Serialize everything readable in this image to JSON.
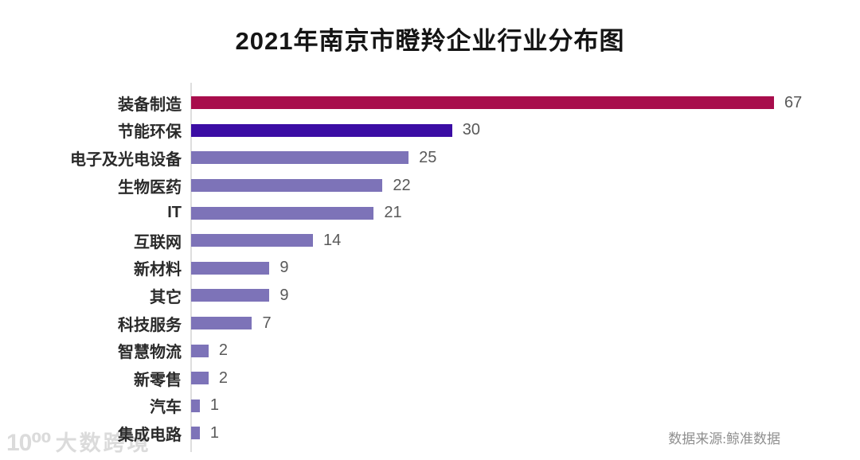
{
  "title": "2021年南京市瞪羚企业行业分布图",
  "chart_data": {
    "type": "bar",
    "orientation": "horizontal",
    "title": "2021年南京市瞪羚企业行业分布图",
    "categories": [
      "装备制造",
      "节能环保",
      "电子及光电设备",
      "生物医药",
      "IT",
      "互联网",
      "新材料",
      "其它",
      "科技服务",
      "智慧物流",
      "新零售",
      "汽车",
      "集成电路"
    ],
    "values": [
      67,
      30,
      25,
      22,
      21,
      14,
      9,
      9,
      7,
      2,
      2,
      1,
      1
    ],
    "bar_colors": [
      "#A80D4C",
      "#3B0DA4",
      "#7D73B8",
      "#7D73B8",
      "#7D73B8",
      "#7D73B8",
      "#7D73B8",
      "#7D73B8",
      "#7D73B8",
      "#7D73B8",
      "#7D73B8",
      "#7D73B8",
      "#7D73B8"
    ],
    "xlim": [
      0,
      67
    ],
    "grid": false,
    "legend": false,
    "value_labels_shown": true,
    "source_note": "数据来源:鲸准数据"
  },
  "colors": {
    "highlight_top_bar": "#A80D4C",
    "highlight_second_bar": "#3B0DA4",
    "default_bar": "#7D73B8",
    "axis_line": "#DEDEDE",
    "category_label": "#2A2A2A",
    "value_label": "#595959",
    "source_text": "#8F8F8F",
    "watermark": "#DBDBDB",
    "background": "#FFFFFF"
  },
  "watermark": {
    "logo": "10⁰⁰",
    "text": "大数跨境"
  }
}
